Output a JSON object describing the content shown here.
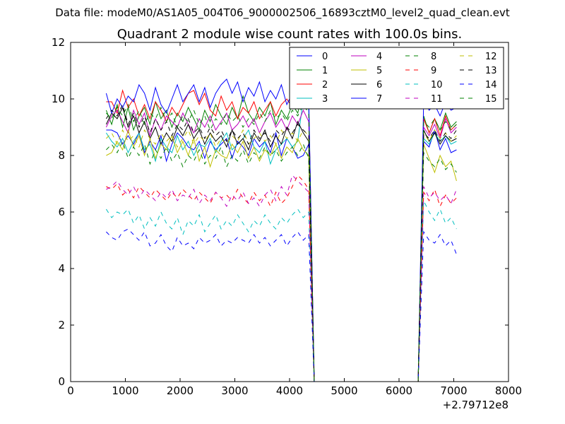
{
  "figure": {
    "suptitle": "Data file: modeM0/AS1A05_004T06_9000002506_16893cztM0_level2_quad_clean.evt",
    "background": "#ffffff"
  },
  "chart_data": {
    "type": "line",
    "title": "Quadrant 2 module wise count rates with 100.0s bins.",
    "xlabel": "",
    "ylabel": "",
    "x_offset_label": "+2.79712e8",
    "xlim": [
      0,
      8000
    ],
    "ylim": [
      0,
      12
    ],
    "xticks": [
      0,
      1000,
      2000,
      3000,
      4000,
      5000,
      6000,
      7000,
      8000
    ],
    "yticks": [
      0,
      2,
      4,
      6,
      8,
      10,
      12
    ],
    "grid": false,
    "legend_position": "top-right",
    "legend_columns": 4,
    "x": [
      650,
      750,
      850,
      950,
      1050,
      1150,
      1250,
      1350,
      1450,
      1550,
      1650,
      1750,
      1850,
      1950,
      2050,
      2150,
      2250,
      2350,
      2450,
      2550,
      2650,
      2750,
      2850,
      2950,
      3050,
      3150,
      3250,
      3350,
      3450,
      3550,
      3650,
      3750,
      3850,
      3950,
      4050,
      4150,
      4250,
      4350,
      4450,
      4550,
      4650,
      4750,
      4850,
      4950,
      5050,
      5150,
      5250,
      5350,
      5450,
      5550,
      5650,
      5750,
      5850,
      5950,
      6050,
      6150,
      6250,
      6350,
      6450,
      6550,
      6650,
      6750,
      6850,
      6950,
      7050
    ],
    "series": [
      {
        "name": "0",
        "color": "#0000ff",
        "dash": "solid",
        "values": [
          8.9,
          8.9,
          8.8,
          8.4,
          8.7,
          8.4,
          8.8,
          8.1,
          8.5,
          8.2,
          8.7,
          7.8,
          8.4,
          8.8,
          8.6,
          8.3,
          8.2,
          8.5,
          7.9,
          8.5,
          8.2,
          8.4,
          8.6,
          7.9,
          8.5,
          8.3,
          8.0,
          8.6,
          8.3,
          8.5,
          8.1,
          8.8,
          8.0,
          8.6,
          8.3,
          7.9,
          8.0,
          8.4,
          0,
          0,
          0,
          0,
          0,
          0,
          0,
          0,
          0,
          0,
          0,
          0,
          0,
          0,
          0,
          0,
          0,
          0,
          0,
          0,
          8.5,
          8.3,
          8.9,
          8.2,
          8.6,
          8.1,
          8.2
        ]
      },
      {
        "name": "1",
        "color": "#008000",
        "dash": "solid",
        "values": [
          9.6,
          9.1,
          9.8,
          9.0,
          9.7,
          8.9,
          9.4,
          9.7,
          9.1,
          9.9,
          9.3,
          9.6,
          9.0,
          9.5,
          9.2,
          9.7,
          9.3,
          8.9,
          9.6,
          9.2,
          9.8,
          9.4,
          9.1,
          9.7,
          9.3,
          10.1,
          9.5,
          9.2,
          9.7,
          9.4,
          9.9,
          9.1,
          9.6,
          9.3,
          9.8,
          9.5,
          10.3,
          9.9,
          0,
          0,
          0,
          0,
          0,
          0,
          0,
          0,
          0,
          0,
          0,
          0,
          0,
          0,
          0,
          0,
          0,
          0,
          0,
          0,
          9.4,
          8.8,
          9.3,
          8.9,
          9.5,
          9.0,
          9.2
        ]
      },
      {
        "name": "2",
        "color": "#ff0000",
        "dash": "solid",
        "values": [
          9.9,
          9.9,
          9.5,
          10.3,
          9.7,
          10.0,
          9.4,
          9.8,
          9.3,
          9.9,
          9.6,
          9.2,
          9.7,
          9.4,
          9.8,
          10.2,
          10.3,
          9.8,
          10.2,
          9.6,
          9.4,
          10.1,
          9.6,
          9.9,
          9.3,
          9.7,
          9.5,
          9.9,
          9.3,
          9.6,
          9.9,
          9.4,
          9.8,
          10.0,
          9.7,
          9.9,
          10.4,
          10.0,
          0,
          0,
          0,
          0,
          0,
          0,
          0,
          0,
          0,
          0,
          0,
          0,
          0,
          0,
          0,
          0,
          0,
          0,
          0,
          0,
          9.3,
          8.8,
          9.3,
          8.7,
          9.4,
          8.9,
          9.1
        ]
      },
      {
        "name": "3",
        "color": "#00bfbf",
        "dash": "solid",
        "values": [
          8.8,
          8.5,
          8.3,
          8.6,
          8.1,
          8.5,
          8.8,
          8.2,
          8.4,
          7.8,
          8.6,
          8.3,
          8.1,
          8.7,
          8.2,
          8.5,
          8.0,
          8.4,
          8.3,
          8.6,
          8.1,
          8.5,
          8.8,
          8.2,
          8.4,
          8.6,
          8.9,
          8.3,
          8.1,
          8.5,
          7.7,
          8.2,
          8.4,
          8.6,
          8.3,
          8.5,
          10.0,
          9.7,
          0,
          0,
          0,
          0,
          0,
          0,
          0,
          0,
          0,
          0,
          0,
          0,
          0,
          0,
          0,
          0,
          0,
          0,
          0,
          0,
          8.6,
          8.4,
          8.8,
          8.5,
          8.7,
          8.4,
          8.5
        ]
      },
      {
        "name": "4",
        "color": "#bf00bf",
        "dash": "solid",
        "values": [
          9.0,
          9.4,
          9.6,
          9.2,
          8.8,
          9.6,
          9.1,
          9.5,
          8.7,
          9.3,
          8.9,
          9.4,
          9.2,
          9.0,
          9.5,
          9.1,
          8.8,
          9.3,
          9.0,
          9.4,
          8.9,
          9.2,
          9.5,
          8.9,
          9.1,
          9.4,
          9.0,
          9.3,
          8.8,
          9.2,
          9.5,
          9.0,
          9.3,
          8.9,
          9.4,
          9.1,
          9.6,
          9.2,
          0,
          0,
          0,
          0,
          0,
          0,
          0,
          0,
          0,
          0,
          0,
          0,
          0,
          0,
          0,
          0,
          0,
          0,
          0,
          0,
          9.0,
          8.7,
          9.1,
          8.6,
          9.3,
          8.8,
          9.0
        ]
      },
      {
        "name": "5",
        "color": "#bfbf00",
        "dash": "solid",
        "values": [
          8.0,
          8.1,
          8.5,
          8.2,
          8.9,
          8.3,
          8.7,
          8.0,
          8.6,
          7.9,
          8.4,
          8.2,
          8.7,
          8.1,
          8.5,
          8.0,
          8.6,
          7.8,
          8.3,
          7.6,
          8.2,
          8.0,
          7.9,
          8.4,
          8.1,
          8.5,
          7.9,
          8.3,
          7.8,
          8.2,
          8.0,
          8.4,
          7.9,
          8.3,
          8.1,
          8.6,
          8.2,
          8.0,
          0,
          0,
          0,
          0,
          0,
          0,
          0,
          0,
          0,
          0,
          0,
          0,
          0,
          0,
          0,
          0,
          0,
          0,
          0,
          0,
          8.4,
          7.9,
          7.4,
          8.0,
          7.6,
          7.8,
          7.1
        ]
      },
      {
        "name": "6",
        "color": "#000000",
        "dash": "solid",
        "values": [
          9.1,
          9.5,
          9.3,
          9.7,
          9.0,
          9.4,
          8.8,
          9.2,
          8.6,
          9.0,
          8.4,
          8.8,
          8.5,
          9.0,
          8.7,
          9.1,
          8.6,
          8.9,
          8.4,
          8.8,
          8.5,
          8.7,
          8.3,
          8.9,
          8.4,
          8.6,
          8.2,
          8.8,
          8.5,
          8.9,
          8.3,
          8.7,
          8.4,
          9.0,
          8.6,
          9.2,
          8.8,
          8.5,
          0,
          0,
          0,
          0,
          0,
          0,
          0,
          0,
          0,
          0,
          0,
          0,
          0,
          0,
          0,
          0,
          0,
          0,
          0,
          0,
          8.9,
          8.5,
          8.8,
          8.4,
          8.7,
          8.5,
          8.6
        ]
      },
      {
        "name": "7",
        "color": "#0000ff",
        "dash": "solid",
        "values": [
          10.2,
          9.5,
          10.0,
          9.7,
          10.1,
          9.9,
          10.5,
          10.2,
          9.6,
          10.4,
          9.8,
          9.5,
          10.0,
          10.5,
          9.9,
          10.2,
          10.5,
          9.9,
          10.4,
          9.7,
          10.2,
          10.5,
          10.7,
          10.2,
          10.6,
          9.9,
          10.4,
          10.1,
          10.6,
          9.9,
          10.3,
          10.0,
          10.5,
          9.8,
          10.2,
          10.4,
          10.6,
          10.1,
          0,
          0,
          0,
          0,
          0,
          0,
          0,
          0,
          0,
          0,
          0,
          0,
          0,
          0,
          0,
          0,
          0,
          0,
          0,
          0,
          10.0,
          9.6,
          9.8,
          9.4,
          9.9,
          9.6,
          9.7
        ]
      },
      {
        "name": "8",
        "color": "#008000",
        "dash": "dashed",
        "values": [
          8.2,
          8.4,
          8.1,
          8.5,
          7.9,
          8.3,
          8.0,
          8.4,
          7.7,
          8.2,
          7.9,
          8.3,
          7.8,
          8.1,
          7.6,
          8.0,
          7.8,
          8.2,
          7.7,
          8.0,
          7.9,
          8.3,
          7.6,
          8.0,
          7.8,
          8.2,
          7.7,
          8.1,
          7.9,
          8.3,
          8.0,
          8.2,
          7.8,
          8.1,
          8.3,
          8.0,
          8.4,
          7.9,
          0,
          0,
          0,
          0,
          0,
          0,
          0,
          0,
          0,
          0,
          0,
          0,
          0,
          0,
          0,
          0,
          0,
          0,
          0,
          0,
          8.1,
          7.8,
          7.6,
          7.9,
          7.5,
          7.7,
          7.4
        ]
      },
      {
        "name": "9",
        "color": "#ff0000",
        "dash": "dashed",
        "values": [
          6.9,
          6.8,
          7.0,
          6.6,
          6.8,
          6.5,
          6.9,
          6.7,
          6.5,
          6.8,
          6.6,
          6.4,
          6.7,
          6.5,
          6.8,
          6.6,
          6.4,
          6.7,
          6.5,
          6.3,
          6.7,
          6.5,
          6.6,
          6.4,
          6.8,
          6.5,
          6.3,
          6.7,
          6.4,
          6.6,
          6.2,
          6.7,
          6.3,
          6.5,
          6.9,
          7.3,
          7.1,
          6.8,
          0,
          0,
          0,
          0,
          0,
          0,
          0,
          0,
          0,
          0,
          0,
          0,
          0,
          0,
          0,
          0,
          0,
          0,
          0,
          0,
          6.7,
          6.4,
          6.8,
          6.2,
          6.6,
          6.3,
          6.5
        ]
      },
      {
        "name": "10",
        "color": "#00bfbf",
        "dash": "dashed",
        "values": [
          6.1,
          5.8,
          6.0,
          5.9,
          6.1,
          5.6,
          5.9,
          5.4,
          5.8,
          5.5,
          6.0,
          5.6,
          5.4,
          5.8,
          5.2,
          5.7,
          5.5,
          5.9,
          5.3,
          5.6,
          5.9,
          5.4,
          5.7,
          5.5,
          5.9,
          5.6,
          5.3,
          5.7,
          5.5,
          5.9,
          5.6,
          5.4,
          5.8,
          5.6,
          5.9,
          6.1,
          5.8,
          6.0,
          0,
          0,
          0,
          0,
          0,
          0,
          0,
          0,
          0,
          0,
          0,
          0,
          0,
          0,
          0,
          0,
          0,
          0,
          0,
          0,
          6.4,
          6.0,
          5.7,
          6.1,
          5.6,
          5.8,
          5.4
        ]
      },
      {
        "name": "11",
        "color": "#bf00bf",
        "dash": "dashed",
        "values": [
          6.8,
          6.9,
          7.1,
          6.8,
          6.6,
          6.9,
          6.5,
          6.8,
          6.6,
          6.4,
          6.7,
          6.5,
          6.8,
          6.4,
          6.6,
          6.5,
          6.8,
          6.3,
          6.6,
          6.4,
          6.7,
          6.5,
          6.2,
          6.6,
          6.4,
          6.7,
          6.3,
          6.5,
          6.2,
          6.6,
          6.8,
          6.4,
          6.9,
          6.6,
          7.3,
          7.1,
          6.9,
          6.7,
          0,
          0,
          0,
          0,
          0,
          0,
          0,
          0,
          0,
          0,
          0,
          0,
          0,
          0,
          0,
          0,
          0,
          0,
          0,
          0,
          6.9,
          6.5,
          6.7,
          6.4,
          6.6,
          6.3,
          6.8
        ]
      },
      {
        "name": "12",
        "color": "#bfbf00",
        "dash": "dashed",
        "values": [
          8.6,
          8.8,
          8.4,
          8.9,
          8.5,
          8.7,
          8.3,
          8.9,
          8.6,
          8.4,
          8.8,
          8.5,
          8.7,
          8.3,
          8.6,
          8.9,
          8.4,
          8.7,
          8.5,
          8.8,
          8.3,
          8.6,
          8.4,
          8.7,
          8.5,
          8.9,
          8.4,
          8.6,
          8.8,
          8.5,
          8.7,
          8.4,
          8.9,
          8.6,
          8.8,
          8.5,
          8.9,
          8.7,
          0,
          0,
          0,
          0,
          0,
          0,
          0,
          0,
          0,
          0,
          0,
          0,
          0,
          0,
          0,
          0,
          0,
          0,
          0,
          0,
          8.8,
          8.5,
          8.9,
          8.6,
          8.8,
          8.5,
          8.7
        ]
      },
      {
        "name": "13",
        "color": "#000000",
        "dash": "dashed",
        "values": [
          9.3,
          9.6,
          9.4,
          9.8,
          9.1,
          9.5,
          9.0,
          9.4,
          8.8,
          9.3,
          8.9,
          9.2,
          8.7,
          9.1,
          8.9,
          9.3,
          8.8,
          9.0,
          8.6,
          9.0,
          8.7,
          8.9,
          8.5,
          8.9,
          8.6,
          8.8,
          8.4,
          8.9,
          8.6,
          8.8,
          8.5,
          8.9,
          8.7,
          9.0,
          8.8,
          9.1,
          8.9,
          8.7,
          0,
          0,
          0,
          0,
          0,
          0,
          0,
          0,
          0,
          0,
          0,
          0,
          0,
          0,
          0,
          0,
          0,
          0,
          0,
          0,
          8.8,
          8.6,
          8.9,
          8.5,
          8.8,
          8.6,
          8.9
        ]
      },
      {
        "name": "14",
        "color": "#0000ff",
        "dash": "dashed",
        "values": [
          5.3,
          5.1,
          5.0,
          5.3,
          5.4,
          5.2,
          5.0,
          5.3,
          4.8,
          4.9,
          5.2,
          4.8,
          4.6,
          5.1,
          4.8,
          4.9,
          4.7,
          5.1,
          4.9,
          5.0,
          5.2,
          4.8,
          5.0,
          4.9,
          5.1,
          5.0,
          4.9,
          5.2,
          4.9,
          5.1,
          4.8,
          5.0,
          5.2,
          4.8,
          5.1,
          5.3,
          5.0,
          5.2,
          0,
          0,
          0,
          0,
          0,
          0,
          0,
          0,
          0,
          0,
          0,
          0,
          0,
          0,
          0,
          0,
          0,
          0,
          0,
          0,
          5.3,
          5.0,
          4.9,
          5.2,
          4.8,
          5.0,
          4.5
        ]
      },
      {
        "name": "15",
        "color": "#008000",
        "dash": "dashed",
        "values": [
          9.5,
          9.3,
          9.7,
          9.4,
          9.8,
          9.2,
          9.6,
          9.1,
          9.5,
          9.3,
          9.7,
          9.2,
          9.5,
          9.0,
          9.4,
          9.2,
          9.6,
          9.1,
          9.4,
          8.9,
          9.3,
          9.1,
          9.5,
          9.2,
          9.4,
          9.0,
          9.3,
          9.1,
          9.5,
          9.2,
          9.6,
          9.3,
          9.5,
          9.2,
          9.6,
          9.4,
          9.8,
          9.5,
          0,
          0,
          0,
          0,
          0,
          0,
          0,
          0,
          0,
          0,
          0,
          0,
          0,
          0,
          0,
          0,
          0,
          0,
          0,
          0,
          9.2,
          9.0,
          9.3,
          8.9,
          9.2,
          8.9,
          9.1
        ]
      }
    ]
  }
}
